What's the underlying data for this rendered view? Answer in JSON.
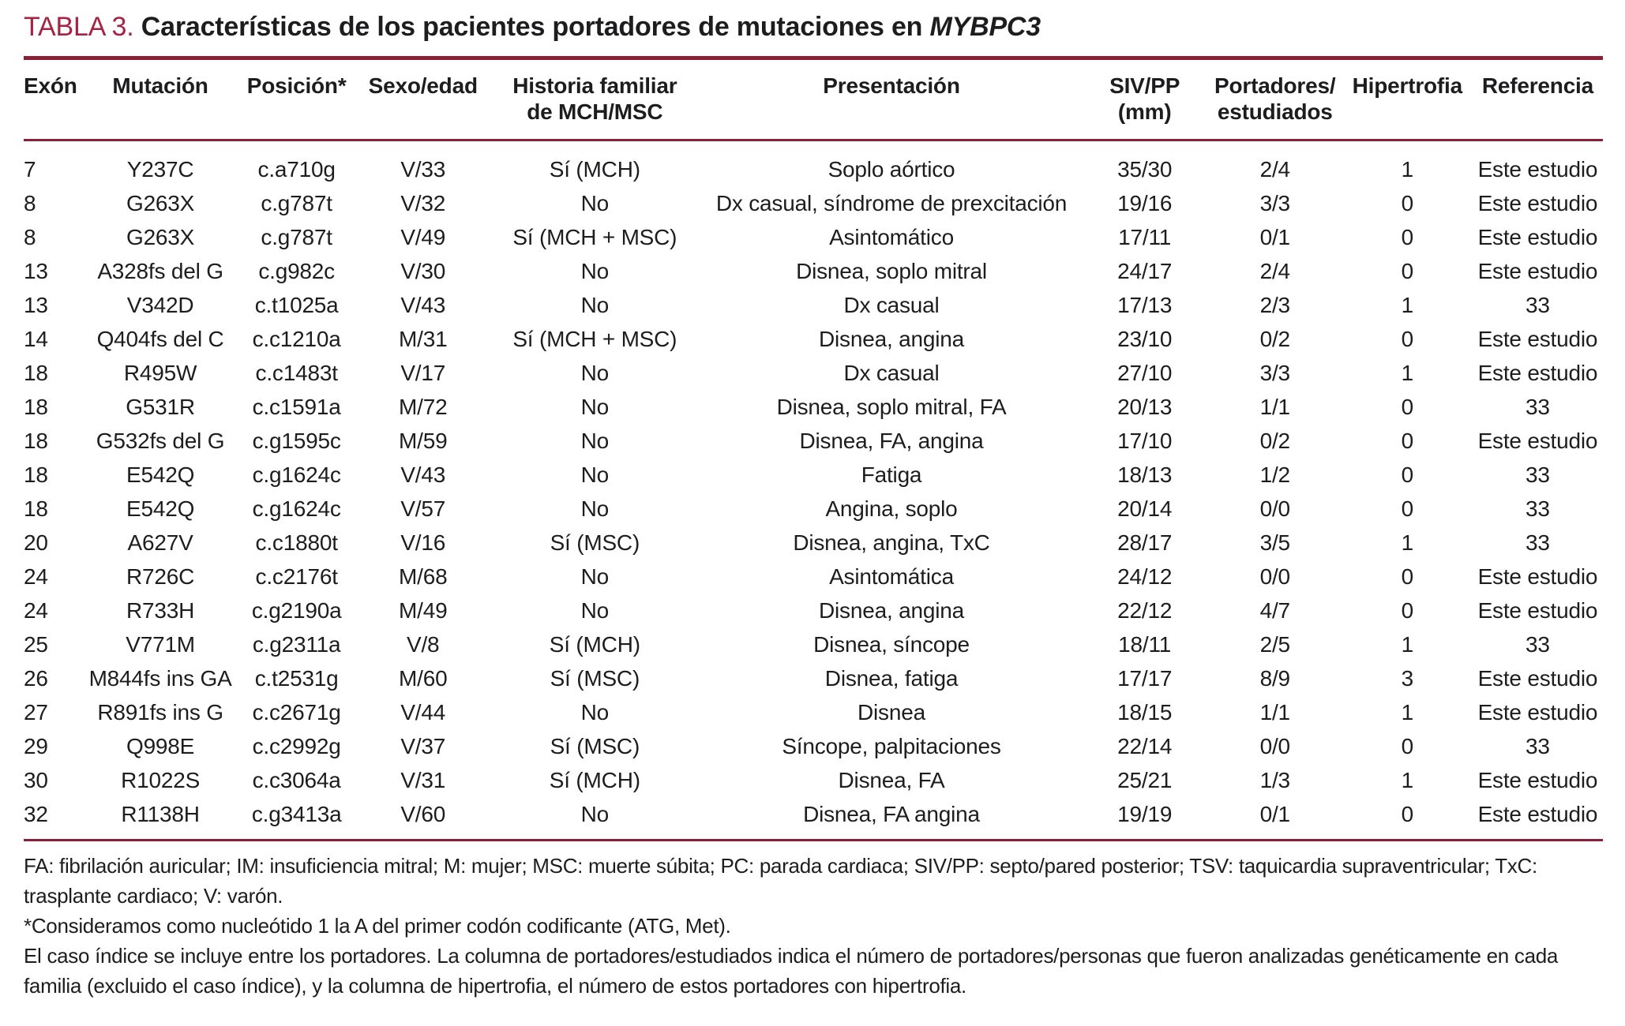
{
  "title": {
    "label": "TABLA 3.",
    "text": " Características de los pacientes portadores de mutaciones en ",
    "gene": "MYBPC3"
  },
  "colors": {
    "accent_label": "#a32444",
    "rule": "#8c1f38",
    "text": "#1d1d1f"
  },
  "table": {
    "headers": [
      {
        "line1": "Exón",
        "line2": ""
      },
      {
        "line1": "Mutación",
        "line2": ""
      },
      {
        "line1": "Posición*",
        "line2": ""
      },
      {
        "line1": "Sexo/edad",
        "line2": ""
      },
      {
        "line1": "Historia familiar",
        "line2": "de MCH/MSC"
      },
      {
        "line1": "Presentación",
        "line2": ""
      },
      {
        "line1": "SIV/PP (mm)",
        "line2": ""
      },
      {
        "line1": "Portadores/",
        "line2": "estudiados"
      },
      {
        "line1": "Hipertrofia",
        "line2": ""
      },
      {
        "line1": "Referencia",
        "line2": ""
      }
    ],
    "rows": [
      [
        "7",
        "Y237C",
        "c.a710g",
        "V/33",
        "Sí (MCH)",
        "Soplo aórtico",
        "35/30",
        "2/4",
        "1",
        "Este estudio"
      ],
      [
        "8",
        "G263X",
        "c.g787t",
        "V/32",
        "No",
        "Dx casual, síndrome de prexcitación",
        "19/16",
        "3/3",
        "0",
        "Este estudio"
      ],
      [
        "8",
        "G263X",
        "c.g787t",
        "V/49",
        "Sí (MCH + MSC)",
        "Asintomático",
        "17/11",
        "0/1",
        "0",
        "Este estudio"
      ],
      [
        "13",
        "A328fs del G",
        "c.g982c",
        "V/30",
        "No",
        "Disnea, soplo mitral",
        "24/17",
        "2/4",
        "0",
        "Este estudio"
      ],
      [
        "13",
        "V342D",
        "c.t1025a",
        "V/43",
        "No",
        "Dx casual",
        "17/13",
        "2/3",
        "1",
        "33"
      ],
      [
        "14",
        "Q404fs del C",
        "c.c1210a",
        "M/31",
        "Sí (MCH + MSC)",
        "Disnea, angina",
        "23/10",
        "0/2",
        "0",
        "Este estudio"
      ],
      [
        "18",
        "R495W",
        "c.c1483t",
        "V/17",
        "No",
        "Dx casual",
        "27/10",
        "3/3",
        "1",
        "Este estudio"
      ],
      [
        "18",
        "G531R",
        "c.c1591a",
        "M/72",
        "No",
        "Disnea, soplo mitral, FA",
        "20/13",
        "1/1",
        "0",
        "33"
      ],
      [
        "18",
        "G532fs del G",
        "c.g1595c",
        "M/59",
        "No",
        "Disnea, FA, angina",
        "17/10",
        "0/2",
        "0",
        "Este estudio"
      ],
      [
        "18",
        "E542Q",
        "c.g1624c",
        "V/43",
        "No",
        "Fatiga",
        "18/13",
        "1/2",
        "0",
        "33"
      ],
      [
        "18",
        "E542Q",
        "c.g1624c",
        "V/57",
        "No",
        "Angina, soplo",
        "20/14",
        "0/0",
        "0",
        "33"
      ],
      [
        "20",
        "A627V",
        "c.c1880t",
        "V/16",
        "Sí (MSC)",
        "Disnea, angina, TxC",
        "28/17",
        "3/5",
        "1",
        "33"
      ],
      [
        "24",
        "R726C",
        "c.c2176t",
        "M/68",
        "No",
        "Asintomática",
        "24/12",
        "0/0",
        "0",
        "Este estudio"
      ],
      [
        "24",
        "R733H",
        "c.g2190a",
        "M/49",
        "No",
        "Disnea, angina",
        "22/12",
        "4/7",
        "0",
        "Este estudio"
      ],
      [
        "25",
        "V771M",
        "c.g2311a",
        "V/8",
        "Sí (MCH)",
        "Disnea, síncope",
        "18/11",
        "2/5",
        "1",
        "33"
      ],
      [
        "26",
        "M844fs ins GA",
        "c.t2531g",
        "M/60",
        "Sí (MSC)",
        "Disnea, fatiga",
        "17/17",
        "8/9",
        "3",
        "Este estudio"
      ],
      [
        "27",
        "R891fs ins G",
        "c.c2671g",
        "V/44",
        "No",
        "Disnea",
        "18/15",
        "1/1",
        "1",
        "Este estudio"
      ],
      [
        "29",
        "Q998E",
        "c.c2992g",
        "V/37",
        "Sí (MSC)",
        "Síncope, palpitaciones",
        "22/14",
        "0/0",
        "0",
        "33"
      ],
      [
        "30",
        "R1022S",
        "c.c3064a",
        "V/31",
        "Sí (MCH)",
        "Disnea, FA",
        "25/21",
        "1/3",
        "1",
        "Este estudio"
      ],
      [
        "32",
        "R1138H",
        "c.g3413a",
        "V/60",
        "No",
        "Disnea, FA angina",
        "19/19",
        "0/1",
        "0",
        "Este estudio"
      ]
    ]
  },
  "footnotes": [
    "FA: fibrilación auricular; IM: insuficiencia mitral; M: mujer; MSC: muerte súbita; PC: parada cardiaca; SIV/PP: septo/pared posterior; TSV: taquicardia supraventricular; TxC: trasplante cardiaco; V: varón.",
    "*Consideramos como nucleótido 1 la A del primer codón codificante (ATG, Met).",
    "El caso índice se incluye entre los portadores. La columna de portadores/estudiados indica el número de portadores/personas que fueron analizadas genéticamente en cada familia (excluido el caso índice), y la columna de hipertrofia, el número de estos portadores con hipertrofia."
  ]
}
